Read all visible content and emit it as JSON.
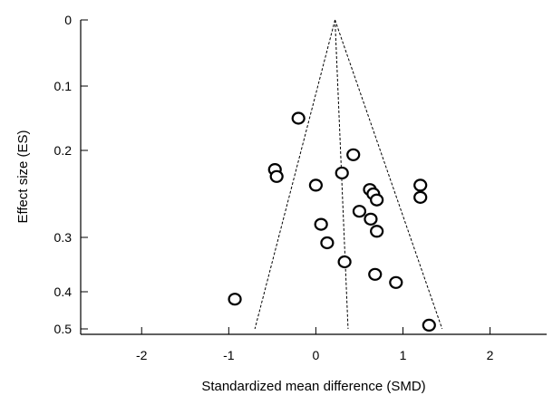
{
  "chart_data": {
    "type": "scatter",
    "title": "",
    "xlabel": "Standardized mean difference (SMD)",
    "ylabel": "Effect size (ES)",
    "xlim": [
      -2.7,
      2.65
    ],
    "ylim": [
      0,
      0.5
    ],
    "y_scale": "reversed",
    "x_ticks": [
      -2,
      -1,
      0,
      1,
      2
    ],
    "y_ticks": [
      0,
      0.1,
      0.2,
      0.3,
      0.4,
      0.5
    ],
    "x_tick_labels": [
      "-2",
      "-1",
      "0",
      "1",
      "2"
    ],
    "y_tick_labels": [
      "0",
      "0.1",
      "0.2",
      "0.3",
      "0.4",
      "0.5"
    ],
    "grid": false,
    "funnel": {
      "apex": {
        "x": 0.22,
        "y": 0
      },
      "center_bottom": {
        "x": 0.37,
        "y": 0.5
      },
      "left_bottom": {
        "x": -0.7,
        "y": 0.5
      },
      "right_bottom": {
        "x": 1.45,
        "y": 0.5
      }
    },
    "points": [
      {
        "x": -0.2,
        "y": 0.15
      },
      {
        "x": 0.43,
        "y": 0.205
      },
      {
        "x": -0.47,
        "y": 0.222
      },
      {
        "x": -0.45,
        "y": 0.23
      },
      {
        "x": 0.3,
        "y": 0.226
      },
      {
        "x": 0.0,
        "y": 0.24
      },
      {
        "x": 1.2,
        "y": 0.24
      },
      {
        "x": 0.62,
        "y": 0.245
      },
      {
        "x": 0.66,
        "y": 0.25
      },
      {
        "x": 1.2,
        "y": 0.254
      },
      {
        "x": 0.7,
        "y": 0.257
      },
      {
        "x": 0.5,
        "y": 0.27
      },
      {
        "x": 0.63,
        "y": 0.279
      },
      {
        "x": 0.06,
        "y": 0.285
      },
      {
        "x": 0.7,
        "y": 0.293
      },
      {
        "x": 0.13,
        "y": 0.31
      },
      {
        "x": 0.33,
        "y": 0.345
      },
      {
        "x": 0.68,
        "y": 0.368
      },
      {
        "x": 0.92,
        "y": 0.383
      },
      {
        "x": -0.93,
        "y": 0.42
      },
      {
        "x": 1.3,
        "y": 0.49
      }
    ]
  }
}
